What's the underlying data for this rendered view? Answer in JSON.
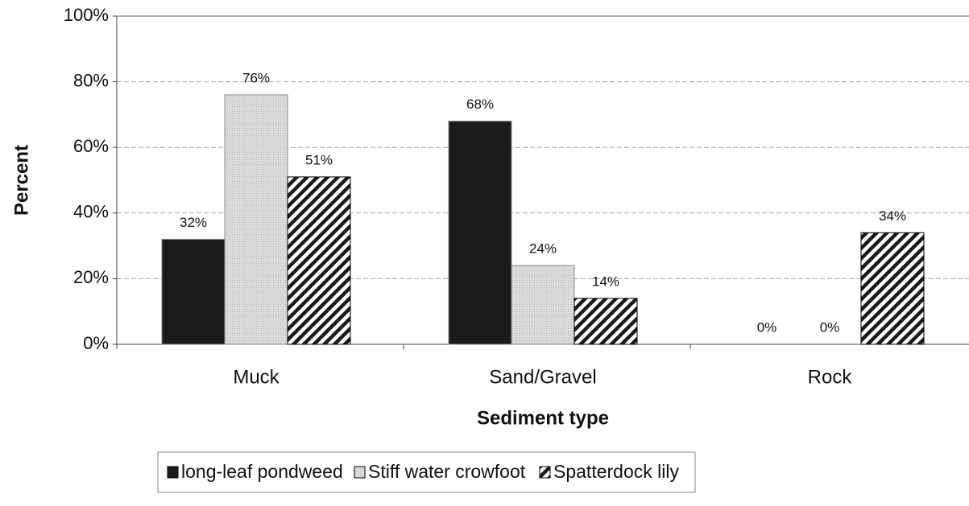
{
  "chart_data": {
    "type": "bar",
    "categories": [
      "Muck",
      "Sand/Gravel",
      "Rock"
    ],
    "series": [
      {
        "name": "long-leaf pondweed",
        "color": "#1a1a1a",
        "values": [
          32,
          68,
          0
        ],
        "value_labels": [
          "32%",
          "68%",
          "0%"
        ]
      },
      {
        "name": "Stiff water crowfoot",
        "color": "#d9d9d9",
        "values": [
          76,
          24,
          0
        ],
        "value_labels": [
          "76%",
          "24%",
          "0%"
        ]
      },
      {
        "name": "Spatterdock lily",
        "color": "#1a1a1a",
        "pattern": "diagonal",
        "values": [
          51,
          14,
          34
        ],
        "value_labels": [
          "51%",
          "14%",
          "34%"
        ]
      }
    ],
    "ylabel": "Percent",
    "xlabel": "Sediment type",
    "ylim": [
      0,
      100
    ],
    "yticks": [
      {
        "value": 0,
        "label": "0%"
      },
      {
        "value": 20,
        "label": "20%"
      },
      {
        "value": 40,
        "label": "40%"
      },
      {
        "value": 60,
        "label": "60%"
      },
      {
        "value": 80,
        "label": "80%"
      },
      {
        "value": 100,
        "label": "100%"
      }
    ],
    "grid": true,
    "legend": "bottom"
  }
}
